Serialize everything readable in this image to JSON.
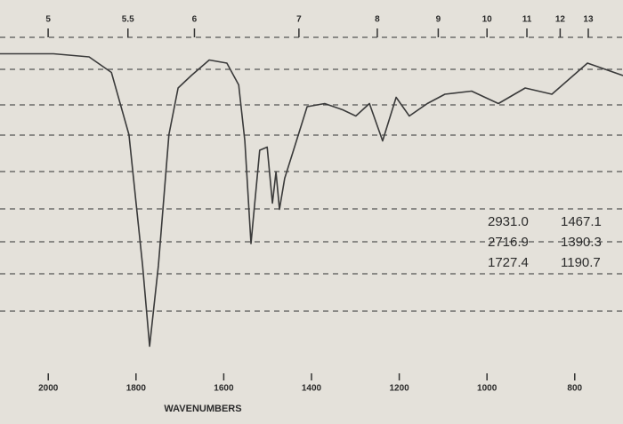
{
  "chart_data": {
    "type": "line",
    "xlabel": "WAVENUMBERS",
    "x": [
      2110,
      1988,
      1907,
      1856,
      1816,
      1785,
      1769,
      1749,
      1725,
      1704,
      1674,
      1633,
      1593,
      1566,
      1552,
      1538,
      1518,
      1501,
      1489,
      1481,
      1473,
      1461,
      1441,
      1410,
      1370,
      1329,
      1299,
      1268,
      1238,
      1207,
      1177,
      1136,
      1096,
      1035,
      974,
      913,
      852,
      771,
      690
    ],
    "values": [
      97,
      97,
      96,
      91,
      71,
      29,
      3,
      29,
      71,
      86,
      90,
      95,
      94,
      87,
      69,
      36,
      66,
      67,
      49,
      59,
      47,
      57,
      66,
      80,
      81,
      79,
      77,
      81,
      69,
      83,
      77,
      81,
      84,
      85,
      81,
      86,
      84,
      94,
      90
    ],
    "color": "#3a3a3a",
    "xlim": [
      2110,
      690
    ],
    "xticks": [
      2000,
      1800,
      1600,
      1400,
      1200,
      1000,
      800
    ],
    "ylim": [
      0,
      100
    ],
    "x2lim": [
      4.74,
      14.49
    ],
    "x2scale": "reciprocal",
    "x2ticks": [
      5,
      5.5,
      6,
      7,
      8,
      9,
      10,
      11,
      12,
      13
    ],
    "annotations": [
      [
        "2931.0",
        "1467.1"
      ],
      [
        "2716.9",
        "1390.3"
      ],
      [
        "1727.4",
        "1190.7"
      ]
    ]
  }
}
